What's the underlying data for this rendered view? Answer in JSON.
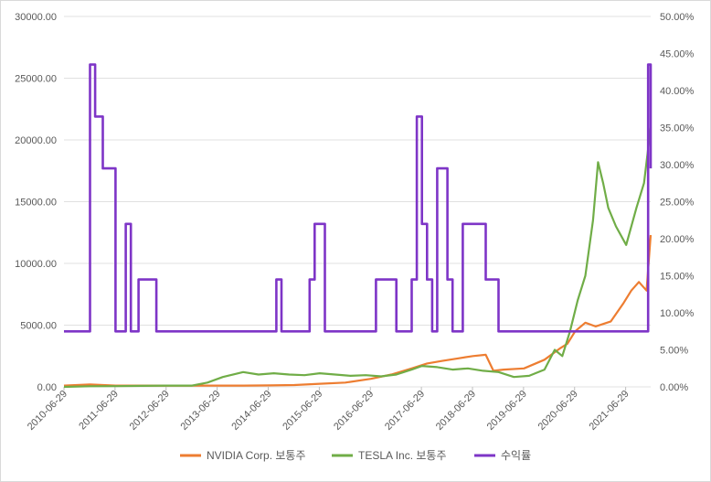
{
  "colors": {
    "nvidia": "#ED7D31",
    "tesla": "#70AD47",
    "ratio": "#7E35C7",
    "grid": "#e0e0e0",
    "axis_text": "#595959"
  },
  "chart_data": {
    "type": "line",
    "grid": "horizontal",
    "legend_position": "bottom",
    "x_tick_labels": [
      "2010-06-29",
      "2011-06-29",
      "2012-06-29",
      "2013-06-29",
      "2014-06-29",
      "2015-06-29",
      "2016-06-29",
      "2017-06-29",
      "2018-06-29",
      "2019-06-29",
      "2020-06-29",
      "2021-06-29"
    ],
    "y_left": {
      "ylim": [
        0,
        30000
      ],
      "tick_labels": [
        "0.00",
        "5000.00",
        "10000.00",
        "15000.00",
        "20000.00",
        "25000.00",
        "30000.00"
      ]
    },
    "y_right": {
      "ylim": [
        0,
        0.5
      ],
      "tick_labels": [
        "0.00%",
        "5.00%",
        "10.00%",
        "15.00%",
        "20.00%",
        "25.00%",
        "30.00%",
        "35.00%",
        "40.00%",
        "45.00%",
        "50.00%"
      ]
    },
    "series": [
      {
        "name": "NVIDIA Corp. 보통주",
        "axis": "left",
        "x": [
          2010.49,
          2011.0,
          2011.5,
          2012.0,
          2012.5,
          2013.0,
          2013.5,
          2014.0,
          2014.5,
          2015.0,
          2015.5,
          2016.0,
          2016.5,
          2016.9,
          2017.3,
          2017.6,
          2017.9,
          2018.2,
          2018.5,
          2018.75,
          2018.9,
          2019.1,
          2019.5,
          2019.9,
          2020.2,
          2020.35,
          2020.5,
          2020.7,
          2020.9,
          2021.2,
          2021.45,
          2021.6,
          2021.75,
          2021.9,
          2021.98
        ],
        "y": [
          100,
          200,
          100,
          100,
          100,
          100,
          100,
          100,
          120,
          150,
          250,
          350,
          650,
          1000,
          1500,
          1900,
          2100,
          2300,
          2500,
          2600,
          1300,
          1400,
          1500,
          2200,
          3100,
          3500,
          4500,
          5200,
          4900,
          5300,
          6800,
          7800,
          8500,
          7800,
          12300
        ]
      },
      {
        "name": "TESLA Inc. 보통주",
        "axis": "left",
        "x": [
          2010.49,
          2011.0,
          2011.5,
          2012.0,
          2012.5,
          2013.0,
          2013.3,
          2013.6,
          2014.0,
          2014.3,
          2014.6,
          2014.9,
          2015.2,
          2015.5,
          2015.8,
          2016.1,
          2016.4,
          2016.7,
          2017.0,
          2017.3,
          2017.5,
          2017.8,
          2018.1,
          2018.4,
          2018.7,
          2019.0,
          2019.3,
          2019.6,
          2019.9,
          2020.1,
          2020.25,
          2020.4,
          2020.55,
          2020.7,
          2020.85,
          2020.95,
          2021.05,
          2021.15,
          2021.3,
          2021.5,
          2021.7,
          2021.85,
          2021.98
        ],
        "y": [
          0,
          50,
          60,
          80,
          100,
          100,
          350,
          800,
          1200,
          1000,
          1100,
          1000,
          950,
          1100,
          1000,
          900,
          950,
          850,
          1000,
          1400,
          1700,
          1600,
          1400,
          1500,
          1300,
          1200,
          800,
          900,
          1400,
          3000,
          2500,
          4500,
          7000,
          9000,
          13500,
          18200,
          16500,
          14500,
          13000,
          11500,
          14500,
          16500,
          21000
        ]
      },
      {
        "name": "수익률",
        "axis": "right",
        "x": [
          2010.49,
          2010.9,
          2011.0,
          2011.1,
          2011.25,
          2011.5,
          2011.7,
          2011.8,
          2011.95,
          2012.3,
          2012.6,
          2013.0,
          2013.5,
          2014.0,
          2014.5,
          2014.65,
          2014.75,
          2015.0,
          2015.2,
          2015.3,
          2015.4,
          2015.6,
          2015.7,
          2016.0,
          2016.5,
          2016.6,
          2017.0,
          2017.2,
          2017.3,
          2017.4,
          2017.5,
          2017.6,
          2017.7,
          2017.8,
          2018.0,
          2018.1,
          2018.3,
          2018.5,
          2018.65,
          2018.75,
          2018.9,
          2019.0,
          2019.5,
          2020.0,
          2020.5,
          2021.0,
          2021.5,
          2021.85,
          2021.93,
          2021.98
        ],
        "y": [
          0.075,
          0.075,
          0.435,
          0.365,
          0.295,
          0.075,
          0.22,
          0.075,
          0.145,
          0.075,
          0.075,
          0.075,
          0.075,
          0.075,
          0.075,
          0.145,
          0.075,
          0.075,
          0.075,
          0.145,
          0.22,
          0.075,
          0.075,
          0.075,
          0.075,
          0.145,
          0.075,
          0.075,
          0.145,
          0.365,
          0.22,
          0.145,
          0.075,
          0.295,
          0.145,
          0.075,
          0.22,
          0.22,
          0.22,
          0.145,
          0.145,
          0.075,
          0.075,
          0.075,
          0.075,
          0.075,
          0.075,
          0.075,
          0.435,
          0.295
        ]
      }
    ]
  }
}
